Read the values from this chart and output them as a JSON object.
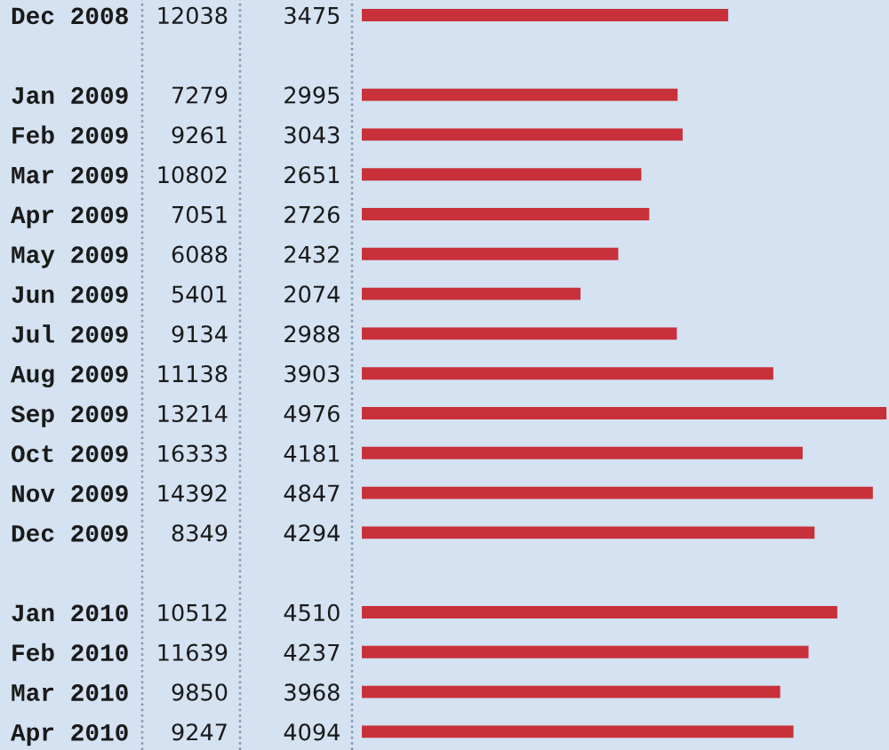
{
  "chart_data": {
    "type": "bar",
    "orientation": "horizontal",
    "categories": [
      "Dec 2008",
      null,
      "Jan 2009",
      "Feb 2009",
      "Mar 2009",
      "Apr 2009",
      "May 2009",
      "Jun 2009",
      "Jul 2009",
      "Aug 2009",
      "Sep 2009",
      "Oct 2009",
      "Nov 2009",
      "Dec 2009",
      null,
      "Jan 2010",
      "Feb 2010",
      "Mar 2010",
      "Apr 2010"
    ],
    "values": [
      3475,
      null,
      2995,
      3043,
      2651,
      2726,
      2432,
      2074,
      2988,
      3903,
      4976,
      4181,
      4847,
      4294,
      null,
      4510,
      4237,
      3968,
      4094
    ],
    "color": "#c8313a",
    "data_labels": true,
    "xlim": [
      0,
      5000
    ],
    "tick_labels": "y",
    "annotations": [
      "12038",
      "7279",
      "9261",
      "10802",
      "7051",
      "6088",
      "5401",
      "9134",
      "11138",
      "13214",
      "16333",
      "14392",
      "8349",
      "10512",
      "11639",
      "9850",
      "9247"
    ]
  }
}
